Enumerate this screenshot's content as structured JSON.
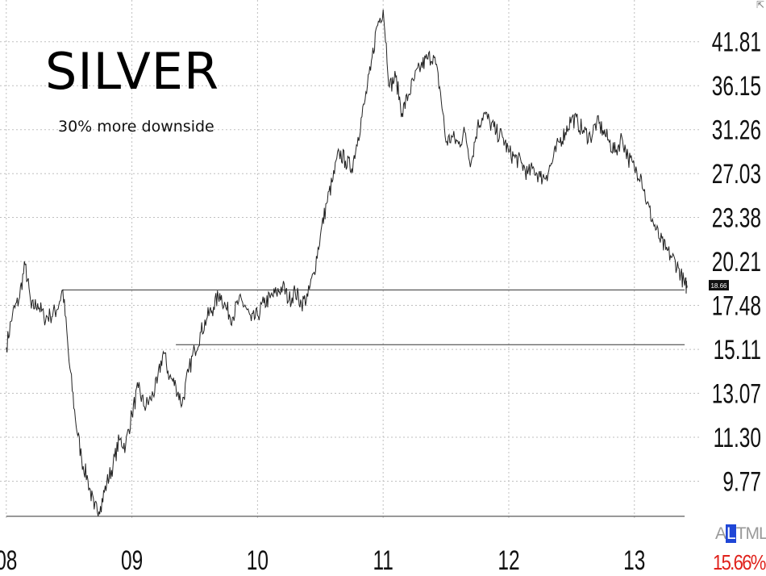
{
  "chart_data": {
    "type": "line",
    "title": "SILVER",
    "subtitle": "30% more downside",
    "xlabel": "",
    "ylabel": "",
    "y_scale": "log",
    "ylim": [
      8.7,
      48
    ],
    "xlim": [
      2008.0,
      2013.5
    ],
    "x_ticks": [
      {
        "value": 2008,
        "label": "08"
      },
      {
        "value": 2009,
        "label": "09"
      },
      {
        "value": 2010,
        "label": "10"
      },
      {
        "value": 2011,
        "label": "11"
      },
      {
        "value": 2012,
        "label": "12"
      },
      {
        "value": 2013,
        "label": "13"
      }
    ],
    "y_ticks": [
      9.77,
      11.3,
      13.07,
      15.11,
      17.48,
      20.21,
      23.38,
      27.03,
      31.26,
      36.15,
      41.81
    ],
    "y_tick_labels": [
      "9.77",
      "11.30",
      "13.07",
      "15.11",
      "17.48",
      "20.21",
      "23.38",
      "27.03",
      "31.26",
      "36.15",
      "41.81"
    ],
    "grid": true,
    "series": [
      {
        "x": [
          2008.0,
          2008.05,
          2008.1,
          2008.15,
          2008.2,
          2008.25,
          2008.3,
          2008.35,
          2008.4,
          2008.45,
          2008.5,
          2008.55,
          2008.6,
          2008.65,
          2008.7,
          2008.75,
          2008.8,
          2008.85,
          2008.9,
          2008.95,
          2009.0,
          2009.05,
          2009.1,
          2009.15,
          2009.2,
          2009.25,
          2009.3,
          2009.35,
          2009.4,
          2009.45,
          2009.5,
          2009.55,
          2009.6,
          2009.65,
          2009.7,
          2009.75,
          2009.8,
          2009.85,
          2009.9,
          2009.95,
          2010.0,
          2010.05,
          2010.1,
          2010.15,
          2010.2,
          2010.25,
          2010.3,
          2010.35,
          2010.4,
          2010.45,
          2010.5,
          2010.55,
          2010.6,
          2010.65,
          2010.7,
          2010.75,
          2010.8,
          2010.85,
          2010.9,
          2010.95,
          2011.0,
          2011.05,
          2011.1,
          2011.15,
          2011.2,
          2011.25,
          2011.3,
          2011.35,
          2011.4,
          2011.45,
          2011.5,
          2011.55,
          2011.6,
          2011.65,
          2011.7,
          2011.75,
          2011.8,
          2011.85,
          2011.9,
          2011.95,
          2012.0,
          2012.05,
          2012.1,
          2012.15,
          2012.2,
          2012.25,
          2012.3,
          2012.35,
          2012.4,
          2012.45,
          2012.5,
          2012.55,
          2012.6,
          2012.65,
          2012.7,
          2012.75,
          2012.8,
          2012.85,
          2012.9,
          2012.95,
          2013.0,
          2013.05,
          2013.1,
          2013.15,
          2013.2,
          2013.25,
          2013.3,
          2013.35,
          2013.4,
          2013.42
        ],
        "y": [
          15.2,
          17.0,
          17.8,
          20.0,
          17.3,
          17.6,
          16.8,
          16.9,
          17.2,
          18.4,
          14.5,
          12.0,
          10.5,
          9.8,
          8.9,
          9.0,
          9.7,
          10.3,
          11.2,
          11.0,
          12.2,
          13.3,
          12.5,
          12.8,
          13.5,
          15.0,
          13.8,
          13.4,
          12.6,
          14.0,
          15.1,
          16.0,
          16.8,
          17.4,
          18.2,
          17.3,
          16.8,
          17.7,
          17.5,
          16.6,
          16.9,
          17.6,
          17.9,
          18.2,
          18.6,
          17.8,
          18.3,
          17.6,
          18.0,
          19.5,
          22.0,
          24.5,
          26.5,
          29.0,
          28.2,
          27.5,
          30.5,
          34.0,
          38.0,
          44.0,
          46.5,
          36.0,
          37.2,
          33.0,
          35.0,
          37.0,
          38.5,
          39.5,
          40.0,
          36.0,
          30.0,
          30.5,
          29.8,
          31.0,
          28.0,
          31.5,
          33.0,
          32.0,
          31.0,
          30.5,
          29.0,
          28.5,
          28.0,
          27.0,
          27.5,
          26.7,
          26.9,
          28.2,
          30.0,
          31.0,
          32.5,
          32.0,
          31.0,
          30.5,
          32.0,
          31.2,
          30.0,
          29.0,
          30.5,
          28.5,
          27.5,
          27.0,
          24.5,
          23.0,
          21.8,
          21.0,
          20.5,
          19.8,
          18.7,
          18.66
        ]
      }
    ],
    "reference_lines": [
      {
        "y": 18.4,
        "x_start": 2008.45,
        "x_end": 2013.4
      },
      {
        "y": 15.35,
        "x_start": 2009.35,
        "x_end": 2013.4
      },
      {
        "y": 8.7,
        "x_start": 2008.0,
        "x_end": 2013.4
      }
    ],
    "last_price": "18.66",
    "scale_modes": [
      "A",
      "L",
      "TML"
    ],
    "scale_selected": "L",
    "change_pct": "15.66%",
    "colors": {
      "line": "#222222",
      "grid": "#bfbfbf",
      "change": "#e0211b",
      "selected": "#1f46d6"
    }
  }
}
